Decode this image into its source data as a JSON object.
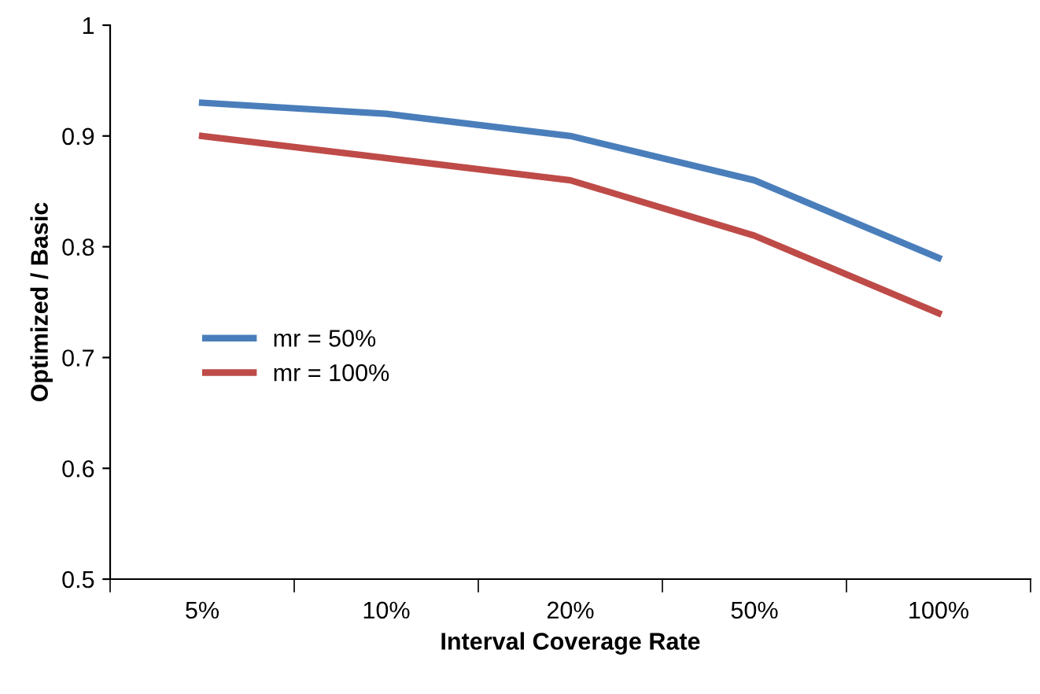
{
  "chart_data": {
    "type": "line",
    "xlabel": "Interval Coverage Rate",
    "ylabel": "Optimized / Basic",
    "categories": [
      "5%",
      "10%",
      "20%",
      "50%",
      "100%"
    ],
    "series": [
      {
        "name": "mr = 50%",
        "color": "#4a7ebb",
        "values": [
          0.93,
          0.92,
          0.9,
          0.86,
          0.79
        ]
      },
      {
        "name": "mr = 100%",
        "color": "#be4b48",
        "values": [
          0.9,
          0.88,
          0.86,
          0.81,
          0.74
        ]
      }
    ],
    "ylim": [
      0.5,
      1
    ],
    "yticks": [
      0.5,
      0.6,
      0.7,
      0.8,
      0.9,
      1
    ],
    "grid": false,
    "legend": "center left",
    "marker": "none",
    "line_style": "solid"
  }
}
